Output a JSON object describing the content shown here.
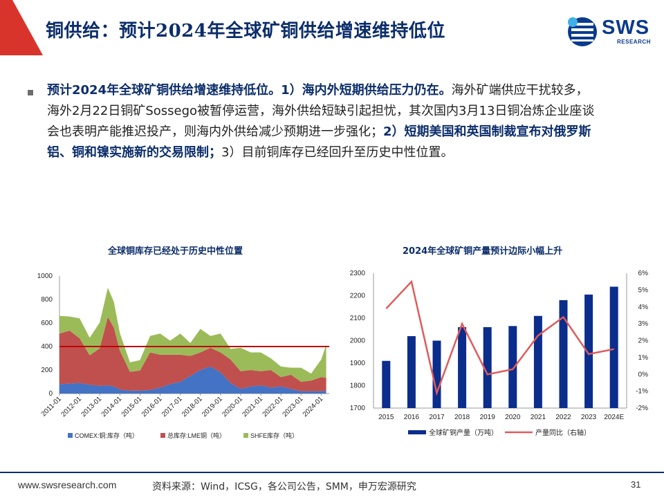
{
  "header": {
    "title": "铜供给：预计2024年全球矿铜供给增速维持低位",
    "logo_text": "SWS",
    "logo_sub": "RESEARCH"
  },
  "body": {
    "seg1": "预计2024年全球矿铜供给增速维持低位。1）海内外短期供给压力仍在。",
    "seg2": "海外矿端供应干扰较多，海外2月22日铜矿Sossego被暂停运营，海外供给短缺引起担忧，其次国内3月13日铜冶炼企业座谈会也表明产能推迟投产，则海内外供给减少预期进一步强化；",
    "seg3": "2）短期美国和英国制裁宣布对俄罗斯铝、铜和镍实施新的交易限制；",
    "seg4": "3）目前铜库存已经回升至历史中性位置。"
  },
  "footer": {
    "url": "www.swsresearch.com",
    "source": "资料来源：Wind，ICSG，各公司公告，SMM，申万宏源研究",
    "page": "31"
  },
  "colors": {
    "navy": "#0b2d6b",
    "red": "#d9342b",
    "comex": "#4472c4",
    "lme": "#c0504d",
    "shfe": "#9bbb59",
    "bar": "#0b2d8c",
    "line": "#e05a5a",
    "hline": "#c00000"
  },
  "chart_data": [
    {
      "type": "area",
      "title": "全球铜库存已经处于历史中性位置",
      "xlabel": "",
      "ylabel": "",
      "ylim": [
        0,
        1000
      ],
      "yticks": [
        "0",
        "200",
        "400",
        "600",
        "800",
        "1000"
      ],
      "xticks": [
        "2011-01",
        "2012-01",
        "2013-01",
        "2014-01",
        "2015-01",
        "2016-01",
        "2017-01",
        "2018-01",
        "2019-01",
        "2020-01",
        "2021-01",
        "2022-01",
        "2023-01",
        "2024-01"
      ],
      "reference_line": 400,
      "x": [
        2011.0,
        2011.5,
        2012.0,
        2012.5,
        2013.0,
        2013.4,
        2013.7,
        2014.0,
        2014.5,
        2015.0,
        2015.5,
        2016.0,
        2016.5,
        2017.0,
        2017.5,
        2018.0,
        2018.5,
        2019.0,
        2019.5,
        2020.0,
        2020.5,
        2021.0,
        2021.5,
        2022.0,
        2022.5,
        2023.0,
        2023.5,
        2024.0,
        2024.25
      ],
      "series": [
        {
          "name": "COMEX:铜:库存（吨）",
          "values": [
            80,
            85,
            90,
            75,
            65,
            70,
            60,
            35,
            25,
            25,
            30,
            50,
            80,
            100,
            150,
            200,
            230,
            180,
            90,
            40,
            60,
            70,
            50,
            60,
            40,
            20,
            20,
            20,
            25
          ]
        },
        {
          "name": "总库存:LME铜（吨）",
          "values": [
            430,
            450,
            380,
            250,
            320,
            580,
            500,
            330,
            160,
            170,
            320,
            280,
            250,
            230,
            170,
            150,
            160,
            170,
            200,
            150,
            140,
            120,
            150,
            80,
            120,
            80,
            90,
            120,
            110
          ]
        },
        {
          "name": "SHFE库存（吨）",
          "values": [
            150,
            120,
            170,
            150,
            220,
            250,
            220,
            150,
            80,
            90,
            140,
            180,
            120,
            180,
            110,
            200,
            100,
            160,
            90,
            200,
            150,
            160,
            100,
            90,
            60,
            120,
            60,
            150,
            280
          ]
        }
      ]
    },
    {
      "type": "bar+line",
      "title": "2024年全球矿铜产量预计边际小幅上升",
      "categories": [
        "2015",
        "2016",
        "2017",
        "2018",
        "2019",
        "2020",
        "2021",
        "2022",
        "2023",
        "2024E"
      ],
      "ylim_left": [
        1700,
        2300
      ],
      "yticks_left": [
        "1700",
        "1800",
        "1900",
        "2000",
        "2100",
        "2200",
        "2300"
      ],
      "ylim_right": [
        -2,
        6
      ],
      "yticks_right": [
        "-2%",
        "-1%",
        "0%",
        "1%",
        "2%",
        "3%",
        "4%",
        "5%",
        "6%"
      ],
      "series": [
        {
          "name": "全球矿铜产量（万吨）",
          "axis": "left",
          "type": "bar",
          "values": [
            1910,
            2020,
            2000,
            2060,
            2060,
            2065,
            2110,
            2180,
            2205,
            2240
          ]
        },
        {
          "name": "产量同比（右轴）",
          "axis": "right",
          "type": "line",
          "values": [
            3.9,
            5.5,
            -1.1,
            3.0,
            0.0,
            0.3,
            2.3,
            3.4,
            1.2,
            1.5
          ]
        }
      ]
    }
  ]
}
